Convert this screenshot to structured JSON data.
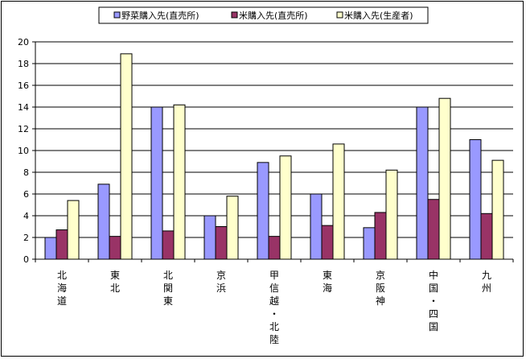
{
  "chart_data": {
    "type": "bar",
    "title": "",
    "xlabel": "",
    "ylabel": "",
    "ylim": [
      0,
      20
    ],
    "yticks": [
      0,
      2,
      4,
      6,
      8,
      10,
      12,
      14,
      16,
      18,
      20
    ],
    "grid": true,
    "legend_position": "top",
    "categories": [
      "北海道",
      "東北",
      "北関東",
      "京浜",
      "甲信越・北陸",
      "東海",
      "京阪神",
      "中国・四国",
      "九州"
    ],
    "series": [
      {
        "name": "野菜購入先(直売所)",
        "color": "#9999ff",
        "values": [
          2.0,
          6.9,
          14.0,
          4.0,
          8.9,
          6.0,
          2.9,
          14.0,
          11.0
        ]
      },
      {
        "name": "米購入先(直売所)",
        "color": "#993366",
        "values": [
          2.7,
          2.1,
          2.6,
          3.0,
          2.1,
          3.1,
          4.3,
          5.5,
          4.2
        ]
      },
      {
        "name": "米購入先(生産者)",
        "color": "#ffffcc",
        "values": [
          5.4,
          18.9,
          14.2,
          5.8,
          9.5,
          10.6,
          8.2,
          14.8,
          9.1
        ]
      }
    ]
  }
}
